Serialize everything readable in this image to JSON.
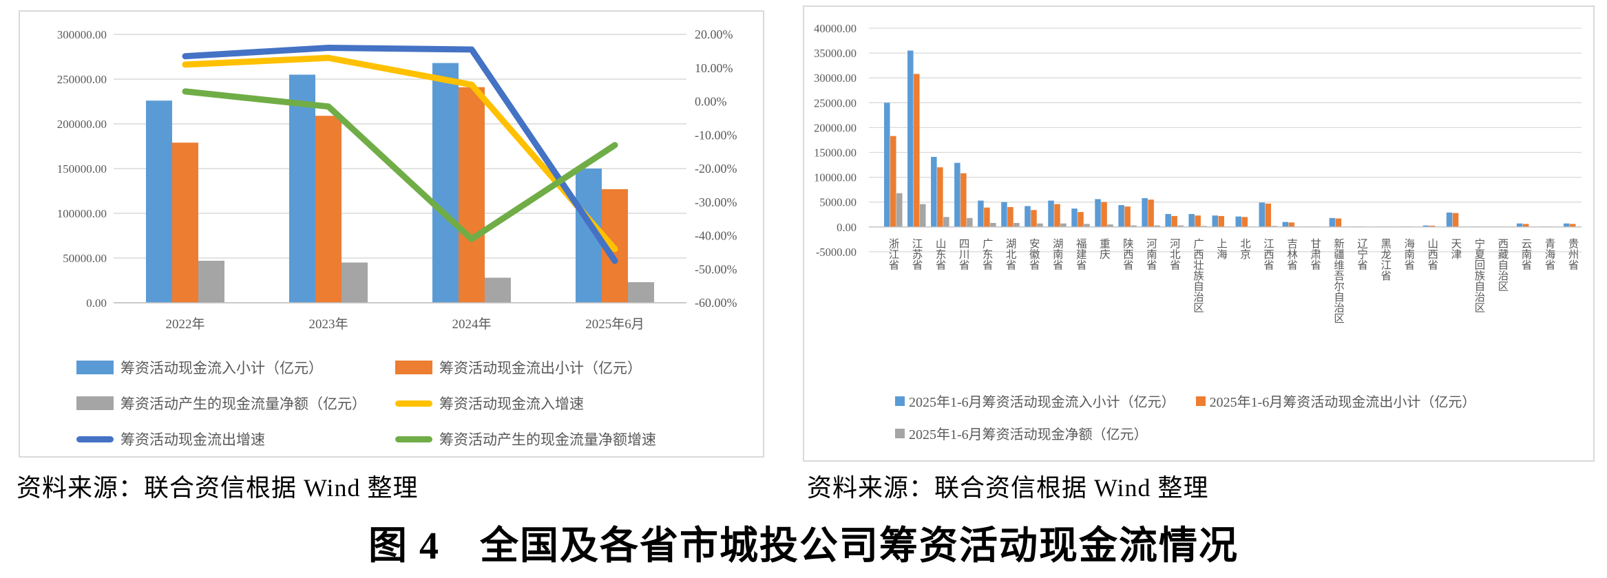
{
  "figure": {
    "title": "图 4　全国及各省市城投公司筹资活动现金流情况",
    "source_caption_left": "资料来源：联合资信根据 Wind 整理",
    "source_caption_right": "资料来源：联合资信根据 Wind 整理"
  },
  "colors": {
    "bar_inflow": "#5B9BD5",
    "bar_outflow": "#ED7D31",
    "bar_net": "#A5A5A5",
    "line_inflow_growth": "#FFC000",
    "line_outflow_growth": "#4472C4",
    "line_net_growth": "#70AD47",
    "axis_text": "#595959",
    "gridline": "#D9D9D9",
    "axis_line": "#BFBFBF"
  },
  "chart_data": [
    {
      "type": "bar",
      "subtype": "combo-bar-line",
      "categories": [
        "2022年",
        "2023年",
        "2024年",
        "2025年6月"
      ],
      "series": [
        {
          "name": "筹资活动现金流入小计（亿元）",
          "kind": "bar",
          "axis": "left",
          "color_key": "bar_inflow",
          "values": [
            226000,
            255000,
            268000,
            150000
          ]
        },
        {
          "name": "筹资活动现金流出小计（亿元）",
          "kind": "bar",
          "axis": "left",
          "color_key": "bar_outflow",
          "values": [
            179000,
            209000,
            241000,
            127000
          ]
        },
        {
          "name": "筹资活动产生的现金流量净额（亿元）",
          "kind": "bar",
          "axis": "left",
          "color_key": "bar_net",
          "values": [
            47000,
            45000,
            28000,
            23000
          ]
        },
        {
          "name": "筹资活动现金流入增速",
          "kind": "line",
          "axis": "right",
          "color_key": "line_inflow_growth",
          "values_pct": [
            11,
            13,
            5,
            -44
          ]
        },
        {
          "name": "筹资活动现金流出增速",
          "kind": "line",
          "axis": "right",
          "color_key": "line_outflow_growth",
          "values_pct": [
            13.5,
            16,
            15.5,
            -47.5
          ]
        },
        {
          "name": "筹资活动产生的现金流量净额增速",
          "kind": "line",
          "axis": "right",
          "color_key": "line_net_growth",
          "values_pct": [
            3,
            -1.5,
            -41,
            -13
          ]
        }
      ],
      "left_axis": {
        "min": 0,
        "max": 300000,
        "step": 50000
      },
      "right_axis": {
        "min_pct": -60,
        "max_pct": 20,
        "step_pct": 10
      },
      "grid": true,
      "legend_position": "bottom"
    },
    {
      "type": "bar",
      "categories": [
        "浙江省",
        "江苏省",
        "山东省",
        "四川省",
        "广东省",
        "湖北省",
        "安徽省",
        "湖南省",
        "福建省",
        "重庆",
        "陕西省",
        "河南省",
        "河北省",
        "广西壮族自治区",
        "上海",
        "北京",
        "江西省",
        "吉林省",
        "甘肃省",
        "新疆维吾尔自治区",
        "辽宁省",
        "黑龙江省",
        "海南省",
        "山西省",
        "天津",
        "宁夏回族自治区",
        "西藏自治区",
        "云南省",
        "青海省",
        "贵州省"
      ],
      "series": [
        {
          "name": "2025年1-6月筹资活动现金流入小计（亿元）",
          "kind": "bar",
          "color_key": "bar_inflow",
          "values": [
            25000,
            35500,
            14100,
            12900,
            5300,
            5000,
            4200,
            5300,
            3700,
            5600,
            4400,
            5800,
            2600,
            2600,
            2300,
            2100,
            4900,
            1000,
            100,
            1800,
            100,
            50,
            100,
            300,
            2900,
            100,
            50,
            700,
            100,
            700
          ]
        },
        {
          "name": "2025年1-6月筹资活动现金流出小计（亿元）",
          "kind": "bar",
          "color_key": "bar_outflow",
          "values": [
            18300,
            30800,
            12000,
            10800,
            3900,
            4000,
            3400,
            4600,
            3000,
            5000,
            4100,
            5500,
            2200,
            2300,
            2200,
            2000,
            4700,
            900,
            100,
            1700,
            100,
            50,
            100,
            250,
            2800,
            100,
            50,
            600,
            100,
            600
          ]
        },
        {
          "name": "2025年1-6月筹资活动现金净额（亿元）",
          "kind": "bar",
          "color_key": "bar_net",
          "values": [
            6800,
            4600,
            2000,
            1800,
            800,
            800,
            700,
            700,
            600,
            500,
            300,
            300,
            300,
            200,
            100,
            100,
            200,
            50,
            0,
            100,
            0,
            0,
            0,
            0,
            100,
            0,
            0,
            50,
            0,
            50
          ]
        }
      ],
      "y_axis": {
        "min": -5000,
        "max": 40000,
        "step": 5000
      },
      "grid": true,
      "legend_position": "bottom"
    }
  ]
}
